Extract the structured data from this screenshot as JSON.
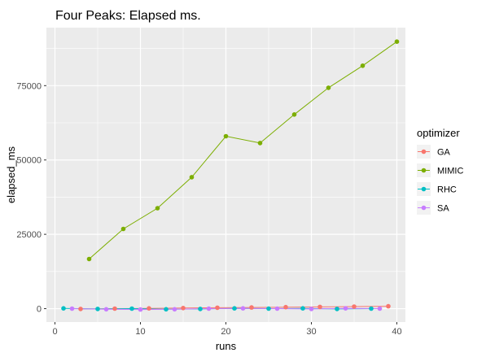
{
  "chart_data": {
    "type": "line",
    "title": "Four Peaks: Elapsed ms.",
    "xlabel": "runs",
    "ylabel": "elapsed_ms",
    "xlim": [
      -1,
      41
    ],
    "ylim": [
      -4500,
      94500
    ],
    "x_ticks": [
      0,
      10,
      20,
      30,
      40
    ],
    "x_minor": [
      5,
      15,
      25,
      35
    ],
    "y_ticks": [
      0,
      25000,
      50000,
      75000
    ],
    "y_tick_labels": [
      "0",
      "25000",
      "50000",
      "75000"
    ],
    "y_minor": [
      12500,
      37500,
      62500,
      87500
    ],
    "grid": true,
    "legend": {
      "title": "optimizer",
      "position": "right"
    },
    "series": [
      {
        "name": "GA",
        "color": "#F8766D",
        "x": [
          3,
          7,
          11,
          15,
          19,
          23,
          27,
          31,
          35,
          39
        ],
        "y": [
          -100,
          0,
          100,
          200,
          300,
          400,
          500,
          600,
          700,
          800
        ]
      },
      {
        "name": "MIMIC",
        "color": "#7CAE00",
        "x": [
          4,
          8,
          12,
          16,
          20,
          24,
          28,
          32,
          36,
          40
        ],
        "y": [
          16700,
          26800,
          33800,
          44200,
          58000,
          55700,
          65300,
          74300,
          81700,
          89800
        ]
      },
      {
        "name": "RHC",
        "color": "#00BFC4",
        "x": [
          1,
          5,
          9,
          13,
          17,
          21,
          25,
          29,
          33,
          37
        ],
        "y": [
          100,
          -100,
          0,
          -200,
          -100,
          100,
          0,
          100,
          -100,
          0
        ]
      },
      {
        "name": "SA",
        "color": "#C77CFF",
        "x": [
          2,
          6,
          10,
          14,
          18,
          22,
          26,
          30,
          34,
          38
        ],
        "y": [
          0,
          -200,
          -300,
          -200,
          0,
          100,
          0,
          -100,
          100,
          0
        ]
      }
    ]
  }
}
